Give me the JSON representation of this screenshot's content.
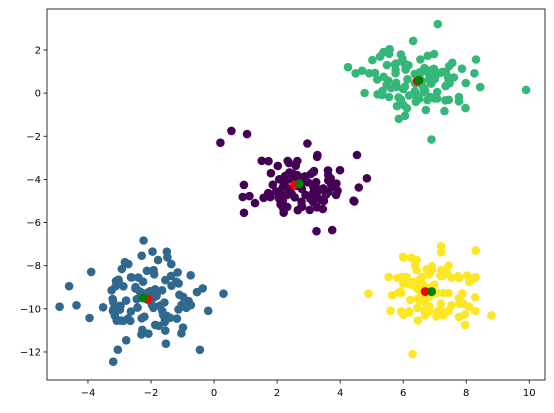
{
  "chart_data": {
    "type": "scatter",
    "title": "",
    "xlabel": "",
    "ylabel": "",
    "xlim": [
      -5.3,
      10.5
    ],
    "ylim": [
      -13.3,
      3.9
    ],
    "grid": false,
    "x_ticks": [
      -4,
      -2,
      0,
      2,
      4,
      6,
      8,
      10
    ],
    "y_ticks": [
      2,
      0,
      -2,
      -4,
      -6,
      -8,
      -10,
      -12
    ],
    "x_tick_labels": [
      "−4",
      "−2",
      "0",
      "2",
      "4",
      "6",
      "8",
      "10"
    ],
    "y_tick_labels": [
      "2",
      "0",
      "−2",
      "−4",
      "−6",
      "−8",
      "−10",
      "−12"
    ],
    "clusters": [
      {
        "color": "#440154",
        "center": [
          2.8,
          -4.3
        ],
        "spread": [
          0.75,
          0.72
        ],
        "count": 100,
        "seed": 11,
        "extra_points": [
          [
            0.2,
            -2.3
          ],
          [
            0.55,
            -1.75
          ],
          [
            1.05,
            -1.9
          ],
          [
            0.95,
            -5.55
          ],
          [
            4.85,
            -3.95
          ],
          [
            3.25,
            -6.4
          ],
          [
            3.75,
            -6.35
          ]
        ]
      },
      {
        "color": "#31688e",
        "center": [
          -2.2,
          -9.6
        ],
        "spread": [
          0.8,
          0.9
        ],
        "count": 100,
        "seed": 23,
        "extra_points": [
          [
            -4.9,
            -9.9
          ],
          [
            -4.6,
            -8.95
          ],
          [
            -3.2,
            -12.45
          ],
          [
            -0.45,
            -11.9
          ],
          [
            -1.5,
            -7.35
          ],
          [
            0.3,
            -9.3
          ]
        ]
      },
      {
        "color": "#35b779",
        "center": [
          6.5,
          0.6
        ],
        "spread": [
          0.85,
          0.75
        ],
        "count": 100,
        "seed": 37,
        "extra_points": [
          [
            9.9,
            0.15
          ],
          [
            7.1,
            3.2
          ],
          [
            6.9,
            -2.15
          ],
          [
            4.25,
            1.2
          ]
        ]
      },
      {
        "color": "#fde725",
        "center": [
          6.8,
          -9.1
        ],
        "spread": [
          0.75,
          0.8
        ],
        "count": 100,
        "seed": 51,
        "extra_points": [
          [
            6.3,
            -12.1
          ],
          [
            8.8,
            -10.3
          ],
          [
            8.3,
            -7.3
          ],
          [
            4.9,
            -9.3
          ],
          [
            7.2,
            -7.1
          ]
        ]
      }
    ],
    "red_markers": [
      [
        2.55,
        -4.25
      ],
      [
        -2.1,
        -9.55
      ],
      [
        6.45,
        0.55
      ],
      [
        6.7,
        -9.2
      ]
    ],
    "green_markers": [
      [
        2.7,
        -4.2
      ],
      [
        -2.25,
        -9.5
      ],
      [
        6.5,
        0.6
      ],
      [
        6.9,
        -9.2
      ]
    ],
    "marker_colors": {
      "red": "#ff0000",
      "green": "#008000"
    }
  }
}
